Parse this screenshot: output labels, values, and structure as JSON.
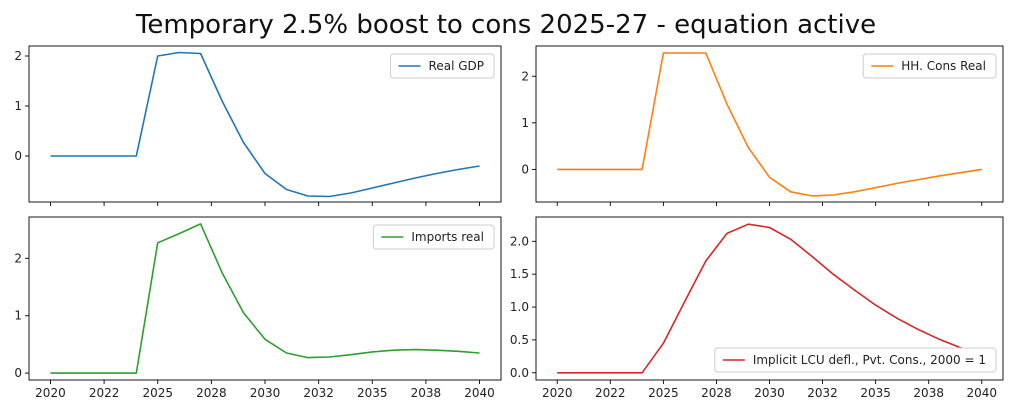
{
  "title": "Temporary 2.5% boost to cons 2025-27 - equation active",
  "chart_data": [
    {
      "type": "line",
      "panel": "top-left",
      "legend": "Real GDP",
      "legend_loc": "upper right",
      "color": "#1f77b4",
      "x": [
        2020,
        2021,
        2022,
        2023,
        2024,
        2025,
        2026,
        2027,
        2028,
        2029,
        2030,
        2031,
        2032,
        2033,
        2034,
        2035,
        2036,
        2037,
        2038,
        2039,
        2040
      ],
      "values": [
        0,
        0,
        0,
        0,
        0,
        2.0,
        2.07,
        2.05,
        1.1,
        0.27,
        -0.35,
        -0.67,
        -0.8,
        -0.81,
        -0.74,
        -0.64,
        -0.54,
        -0.44,
        -0.35,
        -0.27,
        -0.2
      ],
      "ylim": [
        -0.92,
        2.2
      ],
      "yticks": [
        0,
        1,
        2
      ],
      "xtick_labels_shown": false
    },
    {
      "type": "line",
      "panel": "top-right",
      "legend": "HH. Cons Real",
      "legend_loc": "upper right",
      "color": "#ff7f0e",
      "x": [
        2020,
        2021,
        2022,
        2023,
        2024,
        2025,
        2026,
        2027,
        2028,
        2029,
        2030,
        2031,
        2032,
        2033,
        2034,
        2035,
        2036,
        2037,
        2038,
        2039,
        2040
      ],
      "values": [
        0,
        0,
        0,
        0,
        0,
        2.5,
        2.5,
        2.5,
        1.4,
        0.47,
        -0.17,
        -0.48,
        -0.57,
        -0.55,
        -0.48,
        -0.39,
        -0.3,
        -0.22,
        -0.14,
        -0.07,
        0
      ],
      "ylim": [
        -0.7,
        2.65
      ],
      "yticks": [
        0,
        1,
        2
      ],
      "xtick_labels_shown": false
    },
    {
      "type": "line",
      "panel": "bottom-left",
      "legend": "Imports real",
      "legend_loc": "upper right",
      "color": "#2ca02c",
      "x": [
        2020,
        2021,
        2022,
        2023,
        2024,
        2025,
        2026,
        2027,
        2028,
        2029,
        2030,
        2031,
        2032,
        2033,
        2034,
        2035,
        2036,
        2037,
        2038,
        2039,
        2040
      ],
      "values": [
        0,
        0,
        0,
        0,
        0,
        2.27,
        2.43,
        2.6,
        1.75,
        1.05,
        0.59,
        0.35,
        0.27,
        0.28,
        0.32,
        0.37,
        0.4,
        0.41,
        0.4,
        0.38,
        0.35
      ],
      "ylim": [
        -0.12,
        2.72
      ],
      "yticks": [
        0,
        1,
        2
      ],
      "xtick_labels": [
        "2020",
        "2022",
        "2025",
        "2028",
        "2030",
        "2032",
        "2035",
        "2038",
        "2040"
      ]
    },
    {
      "type": "line",
      "panel": "bottom-right",
      "legend": "Implicit LCU defl., Pvt. Cons., 2000 = 1",
      "legend_loc": "lower right",
      "color": "#d62728",
      "x": [
        2020,
        2021,
        2022,
        2023,
        2024,
        2025,
        2026,
        2027,
        2028,
        2029,
        2030,
        2031,
        2032,
        2033,
        2034,
        2035,
        2036,
        2037,
        2038,
        2039,
        2040
      ],
      "values": [
        0,
        0,
        0,
        0,
        0,
        0.45,
        1.08,
        1.7,
        2.12,
        2.26,
        2.21,
        2.03,
        1.77,
        1.5,
        1.26,
        1.03,
        0.83,
        0.66,
        0.51,
        0.38,
        0.28
      ],
      "ylim": [
        -0.11,
        2.37
      ],
      "yticks": [
        0.0,
        0.5,
        1.0,
        1.5,
        2.0
      ],
      "ytick_labels": [
        "0.0",
        "0.5",
        "1.0",
        "1.5",
        "2.0"
      ],
      "xtick_labels": [
        "2020",
        "2022",
        "2025",
        "2028",
        "2030",
        "2032",
        "2035",
        "2038",
        "2040"
      ]
    }
  ]
}
